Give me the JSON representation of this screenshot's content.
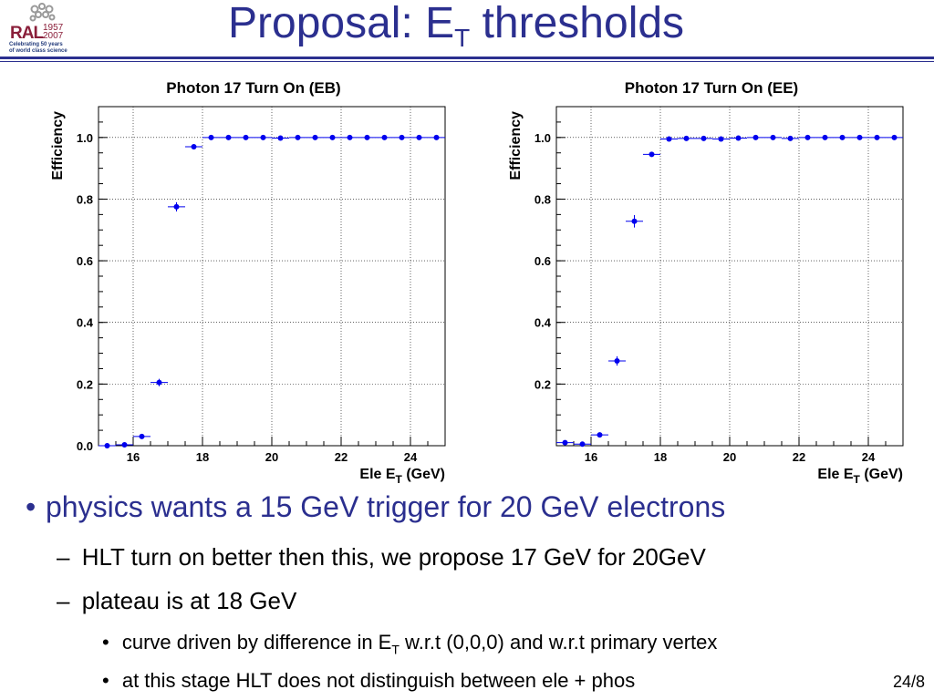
{
  "logo": {
    "name": "RAL",
    "years_top": "1957",
    "years_bottom": "2007",
    "tagline_1": "Celebrating 50 years",
    "tagline_2": "of world class science"
  },
  "slide": {
    "title_main": "Proposal: E",
    "title_sub": "T",
    "title_rest": " thresholds",
    "page_number": "24/8"
  },
  "chart_data": [
    {
      "type": "scatter",
      "title": "Photon 17 Turn On (EB)",
      "ylabel": "Efficiency",
      "xlabel_main": "Ele E",
      "xlabel_sub": "T",
      "xlabel_rest": " (GeV)",
      "xlim": [
        15,
        25
      ],
      "ylim": [
        0,
        1.1
      ],
      "grid": true,
      "xticks": [
        16,
        18,
        20,
        22,
        24
      ],
      "yticks": [
        "0.0",
        "0.2",
        "0.4",
        "0.6",
        "0.8",
        "1.0"
      ],
      "series": [
        {
          "color": "#0000ee",
          "points": [
            {
              "x": 15.25,
              "y": 0.0,
              "yerr": 0.0
            },
            {
              "x": 15.75,
              "y": 0.003,
              "yerr": 0.002
            },
            {
              "x": 16.25,
              "y": 0.03,
              "yerr": 0.005
            },
            {
              "x": 16.75,
              "y": 0.205,
              "yerr": 0.012
            },
            {
              "x": 17.25,
              "y": 0.775,
              "yerr": 0.015
            },
            {
              "x": 17.75,
              "y": 0.97,
              "yerr": 0.005
            },
            {
              "x": 18.25,
              "y": 1.0,
              "yerr": 0.0
            },
            {
              "x": 18.75,
              "y": 1.0,
              "yerr": 0.0
            },
            {
              "x": 19.25,
              "y": 1.0,
              "yerr": 0.0
            },
            {
              "x": 19.75,
              "y": 1.0,
              "yerr": 0.0
            },
            {
              "x": 20.25,
              "y": 0.998,
              "yerr": 0.0
            },
            {
              "x": 20.75,
              "y": 1.0,
              "yerr": 0.0
            },
            {
              "x": 21.25,
              "y": 1.0,
              "yerr": 0.0
            },
            {
              "x": 21.75,
              "y": 1.0,
              "yerr": 0.0
            },
            {
              "x": 22.25,
              "y": 1.0,
              "yerr": 0.0
            },
            {
              "x": 22.75,
              "y": 1.0,
              "yerr": 0.0
            },
            {
              "x": 23.25,
              "y": 1.0,
              "yerr": 0.0
            },
            {
              "x": 23.75,
              "y": 1.0,
              "yerr": 0.0
            },
            {
              "x": 24.25,
              "y": 1.0,
              "yerr": 0.0
            },
            {
              "x": 24.75,
              "y": 1.0,
              "yerr": 0.0
            }
          ]
        }
      ]
    },
    {
      "type": "scatter",
      "title": "Photon 17 Turn On (EE)",
      "ylabel": "Efficiency",
      "xlabel_main": "Ele E",
      "xlabel_sub": "T",
      "xlabel_rest": " (GeV)",
      "xlim": [
        15,
        25
      ],
      "ylim": [
        0,
        1.1
      ],
      "grid": true,
      "xticks": [
        16,
        18,
        20,
        22,
        24
      ],
      "yticks": [
        "0.2",
        "0.4",
        "0.6",
        "0.8",
        "1.0"
      ],
      "series": [
        {
          "color": "#0000ee",
          "points": [
            {
              "x": 15.25,
              "y": 0.01,
              "yerr": 0.003
            },
            {
              "x": 15.75,
              "y": 0.005,
              "yerr": 0.002
            },
            {
              "x": 16.25,
              "y": 0.035,
              "yerr": 0.005
            },
            {
              "x": 16.75,
              "y": 0.275,
              "yerr": 0.015
            },
            {
              "x": 17.25,
              "y": 0.728,
              "yerr": 0.02
            },
            {
              "x": 17.75,
              "y": 0.945,
              "yerr": 0.007
            },
            {
              "x": 18.25,
              "y": 0.995,
              "yerr": 0.003
            },
            {
              "x": 18.75,
              "y": 0.997,
              "yerr": 0.002
            },
            {
              "x": 19.25,
              "y": 0.997,
              "yerr": 0.002
            },
            {
              "x": 19.75,
              "y": 0.995,
              "yerr": 0.002
            },
            {
              "x": 20.25,
              "y": 0.998,
              "yerr": 0.0
            },
            {
              "x": 20.75,
              "y": 1.0,
              "yerr": 0.0
            },
            {
              "x": 21.25,
              "y": 1.0,
              "yerr": 0.0
            },
            {
              "x": 21.75,
              "y": 0.997,
              "yerr": 0.0
            },
            {
              "x": 22.25,
              "y": 1.0,
              "yerr": 0.0
            },
            {
              "x": 22.75,
              "y": 1.0,
              "yerr": 0.0
            },
            {
              "x": 23.25,
              "y": 1.0,
              "yerr": 0.0
            },
            {
              "x": 23.75,
              "y": 1.0,
              "yerr": 0.0
            },
            {
              "x": 24.25,
              "y": 1.0,
              "yerr": 0.0
            },
            {
              "x": 24.75,
              "y": 1.0,
              "yerr": 0.0
            }
          ]
        }
      ]
    }
  ],
  "bullets": {
    "level1_marker": "•",
    "level1": "physics wants a 15 GeV trigger for 20 GeV electrons",
    "level2_marker": "–",
    "level2_a": "HLT turn on better then this, we propose 17 GeV for 20GeV",
    "level2_b": "plateau is at 18 GeV",
    "level3_marker": "•",
    "level3_a_pre": "curve driven by difference in E",
    "level3_a_sub": "T",
    "level3_a_post": " w.r.t (0,0,0) and w.r.t primary vertex",
    "level3_b": "at this stage HLT does not distinguish between ele + phos"
  }
}
